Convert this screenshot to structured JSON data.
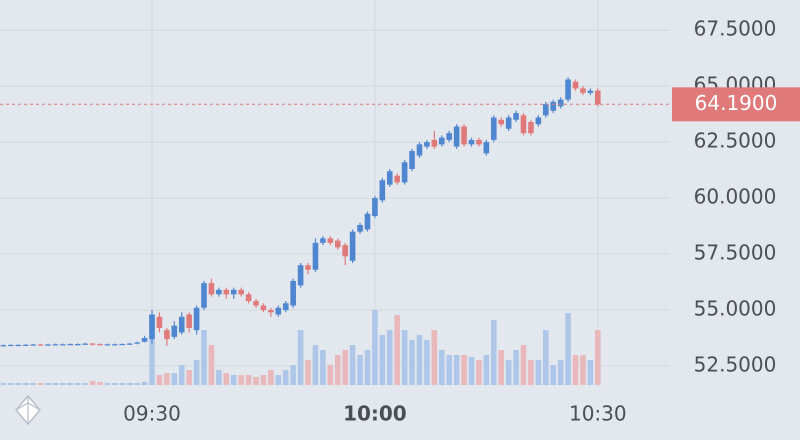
{
  "chart_data": {
    "type": "candlestick",
    "x": [
      "09:10",
      "09:11",
      "09:12",
      "09:13",
      "09:14",
      "09:15",
      "09:16",
      "09:17",
      "09:18",
      "09:19",
      "09:20",
      "09:21",
      "09:22",
      "09:23",
      "09:24",
      "09:25",
      "09:26",
      "09:27",
      "09:28",
      "09:29",
      "09:30",
      "09:31",
      "09:32",
      "09:33",
      "09:34",
      "09:35",
      "09:36",
      "09:37",
      "09:38",
      "09:39",
      "09:40",
      "09:41",
      "09:42",
      "09:43",
      "09:44",
      "09:45",
      "09:46",
      "09:47",
      "09:48",
      "09:49",
      "09:50",
      "09:51",
      "09:52",
      "09:53",
      "09:54",
      "09:55",
      "09:56",
      "09:57",
      "09:58",
      "09:59",
      "10:00",
      "10:01",
      "10:02",
      "10:03",
      "10:04",
      "10:05",
      "10:06",
      "10:07",
      "10:08",
      "10:09",
      "10:10",
      "10:11",
      "10:12",
      "10:13",
      "10:14",
      "10:15",
      "10:16",
      "10:17",
      "10:18",
      "10:19",
      "10:20",
      "10:21",
      "10:22",
      "10:23",
      "10:24",
      "10:25",
      "10:26",
      "10:27",
      "10:28",
      "10:29",
      "10:30"
    ],
    "open": [
      53.42,
      53.43,
      53.44,
      53.44,
      53.45,
      53.46,
      53.45,
      53.46,
      53.47,
      53.47,
      53.48,
      53.48,
      53.5,
      53.48,
      53.47,
      53.47,
      53.47,
      53.48,
      53.5,
      53.58,
      53.7,
      54.7,
      54.1,
      53.8,
      54.0,
      54.8,
      54.1,
      55.1,
      56.2,
      55.7,
      55.9,
      55.7,
      55.9,
      55.7,
      55.4,
      55.2,
      55.0,
      54.8,
      55.0,
      55.2,
      56.1,
      57.0,
      56.8,
      58.0,
      58.2,
      58.1,
      57.9,
      57.2,
      58.5,
      58.6,
      59.2,
      59.9,
      60.6,
      61.0,
      60.7,
      61.3,
      61.9,
      62.3,
      62.6,
      62.4,
      62.6,
      62.3,
      63.2,
      62.4,
      62.6,
      62.0,
      62.6,
      63.5,
      63.1,
      63.5,
      63.7,
      63.4,
      63.3,
      63.7,
      63.9,
      64.1,
      64.4,
      65.2,
      64.9,
      64.7,
      64.8
    ],
    "high": [
      53.46,
      53.47,
      53.47,
      53.48,
      53.49,
      53.49,
      53.49,
      53.5,
      53.5,
      53.51,
      53.51,
      53.53,
      53.53,
      53.51,
      53.5,
      53.5,
      53.51,
      53.53,
      53.58,
      53.85,
      55.0,
      54.9,
      54.2,
      54.5,
      54.9,
      54.9,
      55.2,
      56.3,
      56.4,
      56.0,
      56.0,
      56.0,
      56.0,
      55.8,
      55.5,
      55.3,
      55.1,
      55.2,
      55.4,
      56.4,
      57.1,
      57.1,
      58.2,
      58.3,
      58.3,
      58.2,
      58.0,
      58.6,
      58.9,
      59.4,
      60.1,
      60.9,
      61.3,
      61.1,
      61.7,
      62.2,
      62.5,
      62.6,
      63.0,
      62.8,
      63.0,
      63.3,
      63.3,
      62.7,
      62.7,
      62.6,
      63.7,
      63.6,
      63.7,
      63.9,
      63.8,
      63.5,
      63.7,
      64.3,
      64.4,
      64.5,
      65.4,
      65.3,
      65.0,
      64.9,
      64.9
    ],
    "low": [
      53.39,
      53.4,
      53.41,
      53.41,
      53.42,
      53.42,
      53.42,
      53.43,
      53.44,
      53.44,
      53.45,
      53.45,
      53.42,
      53.42,
      53.44,
      53.44,
      53.44,
      53.45,
      53.47,
      53.55,
      53.5,
      54.0,
      53.4,
      53.7,
      53.9,
      54.0,
      53.9,
      55.0,
      55.6,
      55.6,
      55.5,
      55.5,
      55.6,
      55.3,
      55.1,
      54.9,
      54.7,
      54.7,
      54.9,
      55.1,
      56.0,
      56.6,
      56.7,
      57.9,
      57.9,
      57.7,
      57.0,
      57.1,
      58.4,
      58.5,
      59.1,
      59.8,
      60.5,
      60.6,
      60.6,
      61.2,
      61.8,
      62.2,
      62.2,
      62.3,
      62.5,
      62.2,
      62.3,
      62.3,
      62.3,
      61.9,
      62.5,
      63.2,
      63.0,
      63.4,
      62.8,
      62.8,
      63.2,
      63.6,
      63.8,
      64.0,
      64.3,
      64.8,
      64.6,
      64.6,
      64.1
    ],
    "close": [
      53.43,
      53.44,
      53.44,
      53.45,
      53.46,
      53.45,
      53.46,
      53.47,
      53.47,
      53.48,
      53.48,
      53.5,
      53.45,
      53.45,
      53.47,
      53.47,
      53.48,
      53.5,
      53.55,
      53.75,
      54.8,
      54.2,
      53.7,
      54.3,
      54.7,
      54.2,
      55.1,
      56.2,
      55.7,
      55.9,
      55.7,
      55.9,
      55.7,
      55.4,
      55.2,
      55.0,
      54.9,
      55.1,
      55.3,
      56.3,
      57.0,
      56.8,
      58.0,
      58.2,
      58.0,
      57.8,
      57.4,
      58.5,
      58.8,
      59.3,
      60.0,
      60.8,
      61.2,
      60.7,
      61.6,
      62.1,
      62.4,
      62.5,
      62.3,
      62.7,
      62.9,
      63.2,
      62.4,
      62.6,
      62.4,
      62.5,
      63.6,
      63.3,
      63.6,
      63.8,
      62.9,
      62.9,
      63.6,
      64.2,
      64.3,
      64.4,
      65.3,
      64.9,
      64.7,
      64.8,
      64.19
    ],
    "volume": [
      2,
      2,
      2,
      2,
      2,
      2,
      2,
      2,
      2,
      2,
      2,
      2,
      4,
      3,
      2,
      2,
      2,
      2,
      2,
      3,
      70,
      10,
      12,
      12,
      20,
      15,
      25,
      55,
      40,
      15,
      12,
      10,
      10,
      10,
      8,
      10,
      15,
      10,
      15,
      20,
      55,
      25,
      40,
      35,
      20,
      30,
      35,
      40,
      30,
      35,
      75,
      50,
      55,
      70,
      55,
      45,
      50,
      45,
      55,
      35,
      30,
      30,
      30,
      28,
      25,
      30,
      65,
      35,
      25,
      35,
      40,
      25,
      25,
      55,
      20,
      25,
      72,
      30,
      30,
      25,
      55
    ],
    "volume_ylim": [
      0,
      100
    ],
    "ylim": [
      51.65,
      68.85
    ],
    "yticks": [
      {
        "value": 52.5,
        "label": "52.5000"
      },
      {
        "value": 55,
        "label": "55.0000"
      },
      {
        "value": 57.5,
        "label": "57.5000"
      },
      {
        "value": 60,
        "label": "60.0000"
      },
      {
        "value": 62.5,
        "label": "62.5000"
      },
      {
        "value": 65,
        "label": "65.0000"
      },
      {
        "value": 67.5,
        "label": "67.5000"
      }
    ],
    "xticks": [
      "09:30",
      "10:00",
      "10:30"
    ],
    "last_price": {
      "value": 64.19,
      "label": "64.1900"
    },
    "up_color": "#4f86d0",
    "down_color": "#e07a7a",
    "volume_up_color": "#aec7e8",
    "volume_down_color": "#e9b8bb",
    "grid": true
  }
}
